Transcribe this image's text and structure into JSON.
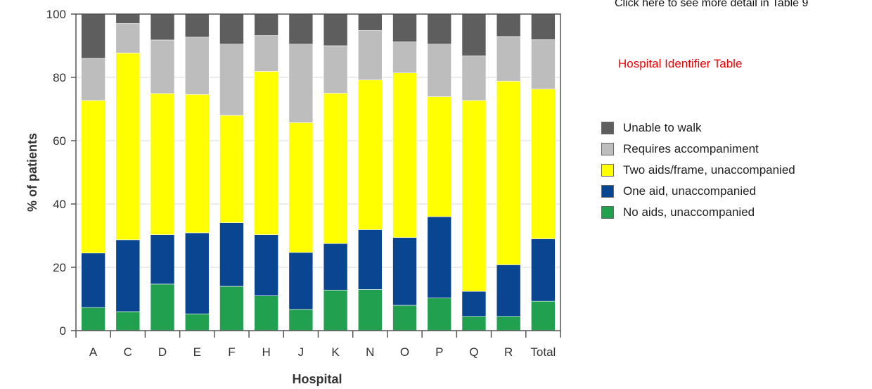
{
  "links": {
    "table_detail": "Click here to see more detail in Table 9",
    "hospital_identifier": "Hospital Identifier Table"
  },
  "chart_data": {
    "type": "bar",
    "stacked": true,
    "title": "",
    "xlabel": "Hospital",
    "ylabel": "% of patients",
    "ylim": [
      0,
      100
    ],
    "yticks": [
      "0",
      "20",
      "40",
      "60",
      "80",
      "100"
    ],
    "categories": [
      "A",
      "C",
      "D",
      "E",
      "F",
      "H",
      "J",
      "K",
      "N",
      "O",
      "P",
      "Q",
      "R",
      "Total"
    ],
    "grid": true,
    "legend_position": "right",
    "series": [
      {
        "name": "No aids, unaccompanied",
        "color": "#21a14f",
        "values": [
          7.3,
          6.0,
          14.7,
          5.3,
          14.0,
          11.0,
          6.7,
          12.8,
          13.0,
          8.0,
          10.3,
          4.5,
          4.5,
          9.3
        ]
      },
      {
        "name": "One aid, unaccompanied",
        "color": "#0a4591",
        "values": [
          17.2,
          22.7,
          15.6,
          25.6,
          20.1,
          19.3,
          18.0,
          14.7,
          18.9,
          21.4,
          25.7,
          7.9,
          16.3,
          19.7
        ]
      },
      {
        "name": "Two aids/frame, unaccompanied",
        "color": "#ffff00",
        "values": [
          48.2,
          59.0,
          44.6,
          43.7,
          33.9,
          51.6,
          41.0,
          47.5,
          47.3,
          52.0,
          37.9,
          60.3,
          58.0,
          47.3
        ]
      },
      {
        "name": "Requires accompaniment",
        "color": "#bdbdbd",
        "values": [
          13.3,
          9.3,
          16.9,
          18.1,
          22.5,
          11.3,
          24.8,
          15.0,
          15.6,
          9.8,
          16.6,
          14.1,
          14.1,
          15.6
        ]
      },
      {
        "name": "Unable to walk",
        "color": "#5e5e5e",
        "values": [
          14.0,
          3.0,
          8.2,
          7.3,
          9.5,
          6.8,
          9.5,
          10.0,
          5.2,
          8.8,
          9.5,
          13.2,
          7.1,
          8.1
        ]
      }
    ]
  }
}
